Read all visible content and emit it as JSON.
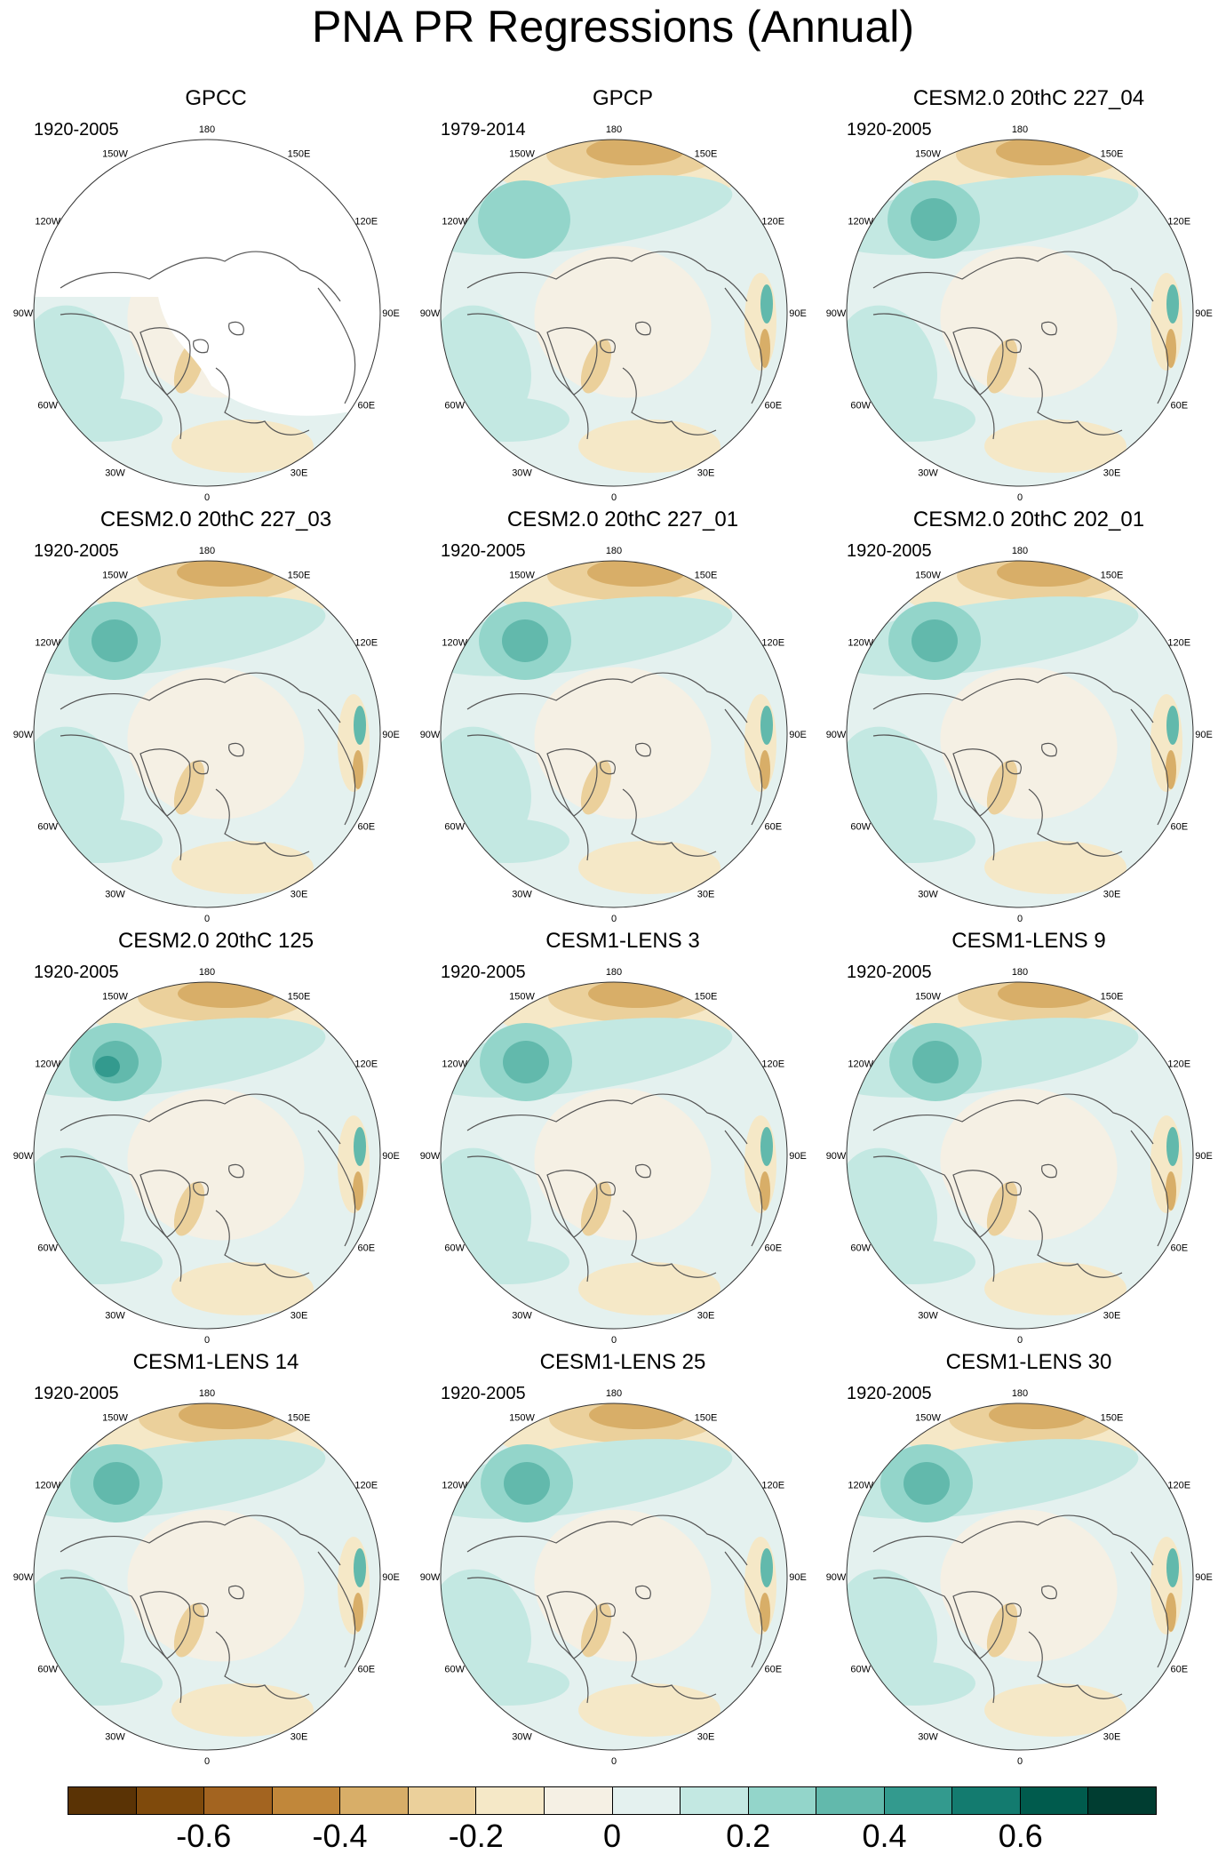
{
  "title": "PNA PR Regressions (Annual)",
  "colors": {
    "coast": "#555555",
    "missing": "#ffffff",
    "rim": "#333333"
  },
  "lon_labels": [
    "180",
    "150E",
    "120E",
    "90E",
    "60E",
    "30E",
    "0",
    "30W",
    "60W",
    "90W",
    "120W",
    "150W"
  ],
  "panels": [
    {
      "title": "GPCC",
      "period": "1920-2005",
      "style": "gpcc"
    },
    {
      "title": "GPCP",
      "period": "1979-2014",
      "style": "gpcp"
    },
    {
      "title": "CESM2.0 20thC 227_04",
      "period": "1920-2005",
      "style": "model"
    },
    {
      "title": "CESM2.0 20thC 227_03",
      "period": "1920-2005",
      "style": "model"
    },
    {
      "title": "CESM2.0 20thC 227_01",
      "period": "1920-2005",
      "style": "model"
    },
    {
      "title": "CESM2.0 20thC 202_01",
      "period": "1920-2005",
      "style": "model"
    },
    {
      "title": "CESM2.0 20thC 125",
      "period": "1920-2005",
      "style": "model"
    },
    {
      "title": "CESM1-LENS 3",
      "period": "1920-2005",
      "style": "model"
    },
    {
      "title": "CESM1-LENS 9",
      "period": "1920-2005",
      "style": "model"
    },
    {
      "title": "CESM1-LENS 14",
      "period": "1920-2005",
      "style": "model"
    },
    {
      "title": "CESM1-LENS 25",
      "period": "1920-2005",
      "style": "model"
    },
    {
      "title": "CESM1-LENS 30",
      "period": "1920-2005",
      "style": "model"
    }
  ],
  "colorbar": {
    "colors": [
      "#5a3305",
      "#7f4a0c",
      "#a36420",
      "#c1873a",
      "#d8ae68",
      "#ebd09b",
      "#f5e8c7",
      "#f5f0e4",
      "#e4f1ef",
      "#c3e8e2",
      "#93d5ca",
      "#62b9ac",
      "#339a8e",
      "#137b6f",
      "#005b4d",
      "#003d31"
    ],
    "ticks": [
      "-0.6",
      "-0.4",
      "-0.2",
      "0",
      "0.2",
      "0.4",
      "0.6"
    ]
  }
}
